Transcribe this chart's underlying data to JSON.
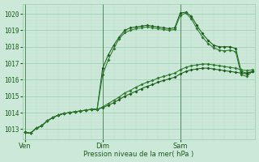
{
  "bg_color": "#cce8d8",
  "grid_color_major": "#99ccaa",
  "grid_color_minor": "#bbddcc",
  "line_colors": [
    "#1a5c1a",
    "#2d7a2d",
    "#1a5c1a",
    "#2d7a2d"
  ],
  "ylabel": "Pression niveau de la mer( hPa )",
  "ylim": [
    1012.4,
    1020.6
  ],
  "yticks": [
    1013,
    1014,
    1015,
    1016,
    1017,
    1018,
    1019,
    1020
  ],
  "xtick_labels": [
    "Ven",
    "Dim",
    "Sam"
  ],
  "xtick_positions": [
    0,
    14,
    28
  ],
  "total_points": 42,
  "series": [
    [
      1012.8,
      1012.75,
      1013.05,
      1013.2,
      1013.5,
      1013.7,
      1013.85,
      1013.95,
      1014.0,
      1014.05,
      1014.1,
      1014.15,
      1014.2,
      1014.2,
      1016.7,
      1017.5,
      1018.1,
      1018.6,
      1019.0,
      1019.15,
      1019.2,
      1019.25,
      1019.3,
      1019.25,
      1019.2,
      1019.15,
      1019.1,
      1019.15,
      1020.05,
      1020.1,
      1019.85,
      1019.3,
      1018.8,
      1018.4,
      1018.1,
      1018.0,
      1018.0,
      1018.0,
      1017.9,
      1016.5,
      1016.4,
      1016.5
    ],
    [
      1012.8,
      1012.75,
      1013.05,
      1013.2,
      1013.5,
      1013.7,
      1013.85,
      1013.95,
      1014.0,
      1014.05,
      1014.1,
      1014.15,
      1014.2,
      1014.2,
      1016.3,
      1017.2,
      1017.9,
      1018.5,
      1018.85,
      1019.0,
      1019.1,
      1019.15,
      1019.2,
      1019.15,
      1019.1,
      1019.05,
      1019.0,
      1019.05,
      1019.9,
      1020.05,
      1019.7,
      1019.1,
      1018.6,
      1018.2,
      1017.95,
      1017.8,
      1017.75,
      1017.8,
      1017.7,
      1016.3,
      1016.2,
      1016.5
    ],
    [
      1012.8,
      1012.75,
      1013.05,
      1013.2,
      1013.5,
      1013.7,
      1013.85,
      1013.95,
      1014.0,
      1014.05,
      1014.1,
      1014.15,
      1014.2,
      1014.2,
      1014.3,
      1014.45,
      1014.6,
      1014.8,
      1015.0,
      1015.15,
      1015.3,
      1015.45,
      1015.6,
      1015.7,
      1015.85,
      1015.95,
      1016.05,
      1016.15,
      1016.35,
      1016.5,
      1016.6,
      1016.65,
      1016.7,
      1016.7,
      1016.65,
      1016.6,
      1016.55,
      1016.5,
      1016.45,
      1016.4,
      1016.35,
      1016.5
    ],
    [
      1012.8,
      1012.75,
      1013.05,
      1013.2,
      1013.5,
      1013.7,
      1013.85,
      1013.95,
      1014.0,
      1014.05,
      1014.1,
      1014.15,
      1014.2,
      1014.2,
      1014.35,
      1014.55,
      1014.75,
      1014.95,
      1015.2,
      1015.35,
      1015.55,
      1015.7,
      1015.85,
      1015.95,
      1016.1,
      1016.2,
      1016.3,
      1016.4,
      1016.6,
      1016.75,
      1016.85,
      1016.9,
      1016.95,
      1016.95,
      1016.9,
      1016.85,
      1016.8,
      1016.75,
      1016.7,
      1016.6,
      1016.55,
      1016.6
    ]
  ]
}
